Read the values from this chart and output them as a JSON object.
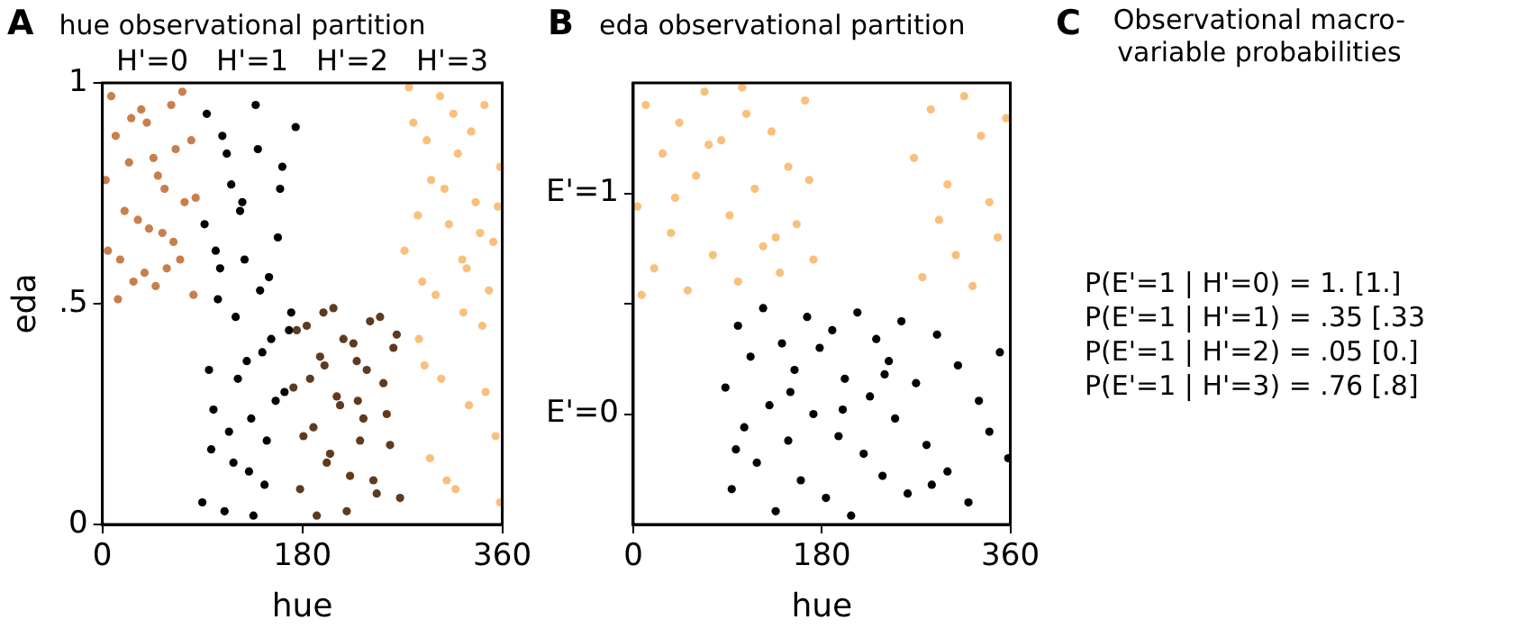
{
  "chart_data": [
    {
      "type": "scatter",
      "title": "hue observational partition",
      "annotations": [
        "A",
        "H'=0",
        "H'=1",
        "H'=2",
        "H'=3"
      ],
      "xlabel": "hue",
      "ylabel": "eda",
      "xlim": [
        0,
        360
      ],
      "xticks": [
        0,
        180,
        360
      ],
      "ylim": [
        0,
        1
      ],
      "yticks": [
        0,
        {
          "value": 0.5,
          "label": ".5"
        },
        1
      ],
      "grid": false,
      "legend": false,
      "marker": "circle",
      "series": [
        {
          "color": "#c87f4e",
          "x": [
            5,
            12,
            20,
            28,
            35,
            42,
            50,
            58,
            66,
            74,
            82,
            8,
            16,
            24,
            32,
            40,
            48,
            56,
            64,
            72,
            80,
            3,
            14,
            26,
            38,
            46,
            54,
            62,
            70,
            84
          ],
          "values": [
            0.62,
            0.88,
            0.71,
            0.55,
            0.94,
            0.67,
            0.79,
            0.58,
            0.85,
            0.73,
            0.52,
            0.97,
            0.6,
            0.82,
            0.69,
            0.91,
            0.54,
            0.76,
            0.64,
            0.98,
            0.87,
            0.78,
            0.51,
            0.92,
            0.57,
            0.83,
            0.66,
            0.95,
            0.6,
            0.74
          ]
        },
        {
          "color": "#000000",
          "x": [
            90,
            96,
            102,
            108,
            114,
            120,
            126,
            132,
            138,
            144,
            150,
            156,
            162,
            168,
            174,
            92,
            98,
            104,
            110,
            116,
            122,
            128,
            134,
            140,
            146,
            152,
            158,
            164,
            170,
            94,
            100,
            106,
            112,
            118,
            124,
            130,
            136,
            142,
            148,
            160
          ],
          "values": [
            0.05,
            0.35,
            0.62,
            0.88,
            0.21,
            0.47,
            0.73,
            0.12,
            0.95,
            0.39,
            0.56,
            0.28,
            0.81,
            0.44,
            0.9,
            0.68,
            0.17,
            0.51,
            0.03,
            0.77,
            0.33,
            0.6,
            0.24,
            0.85,
            0.09,
            0.42,
            0.65,
            0.3,
            0.48,
            0.93,
            0.26,
            0.58,
            0.84,
            0.14,
            0.71,
            0.37,
            0.02,
            0.53,
            0.19,
            0.76
          ]
        },
        {
          "color": "#603a1f",
          "x": [
            172,
            178,
            184,
            190,
            196,
            202,
            208,
            214,
            220,
            226,
            232,
            238,
            244,
            250,
            256,
            262,
            268,
            175,
            181,
            187,
            193,
            199,
            205,
            211,
            217,
            223,
            229,
            235,
            241,
            247,
            253,
            259,
            265,
            200,
            230
          ],
          "values": [
            0.31,
            0.08,
            0.45,
            0.22,
            0.38,
            0.14,
            0.49,
            0.27,
            0.03,
            0.41,
            0.19,
            0.35,
            0.1,
            0.47,
            0.25,
            0.4,
            0.06,
            0.44,
            0.2,
            0.33,
            0.02,
            0.48,
            0.16,
            0.29,
            0.42,
            0.11,
            0.37,
            0.24,
            0.46,
            0.07,
            0.32,
            0.18,
            0.43,
            0.36,
            0.28
          ]
        },
        {
          "color": "#f8c07c",
          "x": [
            272,
            280,
            288,
            296,
            304,
            312,
            320,
            328,
            336,
            344,
            352,
            358,
            276,
            284,
            292,
            300,
            308,
            316,
            324,
            332,
            340,
            348,
            356,
            285,
            295,
            305,
            318,
            330,
            342,
            354,
            290,
            310,
            325,
            345,
            358
          ],
          "values": [
            0.62,
            0.91,
            0.55,
            0.78,
            0.97,
            0.68,
            0.84,
            0.58,
            0.73,
            0.95,
            0.64,
            0.81,
            0.99,
            0.7,
            0.87,
            0.52,
            0.76,
            0.93,
            0.6,
            0.89,
            0.66,
            0.53,
            0.72,
            0.42,
            0.15,
            0.33,
            0.08,
            0.27,
            0.45,
            0.2,
            0.36,
            0.1,
            0.48,
            0.3,
            0.05
          ]
        }
      ]
    },
    {
      "type": "scatter",
      "title": "eda observational partition",
      "annotations": [
        "B"
      ],
      "xlabel": "hue",
      "xlim": [
        0,
        360
      ],
      "xticks": [
        0,
        180,
        360
      ],
      "ylim": [
        0,
        1
      ],
      "yticks": [
        {
          "value": 0.25,
          "label": "E'=0"
        },
        {
          "value": 0.5,
          "label": null
        },
        {
          "value": 0.75,
          "label": "E'=1"
        }
      ],
      "grid": false,
      "legend": false,
      "marker": "circle",
      "series": [
        {
          "color": "#f8c07c",
          "x": [
            4,
            12,
            20,
            28,
            36,
            44,
            52,
            60,
            68,
            76,
            84,
            92,
            100,
            108,
            116,
            124,
            132,
            140,
            148,
            156,
            164,
            172,
            8,
            40,
            72,
            104,
            136,
            168,
            268,
            276,
            284,
            292,
            300,
            308,
            316,
            324,
            332,
            340,
            348,
            356
          ],
          "values": [
            0.72,
            0.95,
            0.58,
            0.84,
            0.66,
            0.91,
            0.53,
            0.79,
            0.98,
            0.61,
            0.87,
            0.7,
            0.55,
            0.93,
            0.76,
            0.63,
            0.89,
            0.57,
            0.81,
            0.68,
            0.96,
            0.6,
            0.52,
            0.74,
            0.86,
            0.99,
            0.65,
            0.78,
            0.83,
            0.56,
            0.94,
            0.69,
            0.77,
            0.61,
            0.97,
            0.54,
            0.88,
            0.73,
            0.65,
            0.92
          ]
        },
        {
          "color": "#000000",
          "x": [
            88,
            94,
            100,
            106,
            112,
            118,
            124,
            130,
            136,
            142,
            148,
            154,
            160,
            166,
            172,
            178,
            184,
            190,
            196,
            202,
            208,
            214,
            220,
            226,
            232,
            238,
            244,
            250,
            256,
            262,
            270,
            280,
            290,
            300,
            310,
            320,
            330,
            340,
            350,
            358,
            98,
            150,
            200,
            240,
            285
          ],
          "values": [
            0.31,
            0.08,
            0.45,
            0.22,
            0.38,
            0.14,
            0.49,
            0.27,
            0.03,
            0.41,
            0.19,
            0.35,
            0.1,
            0.47,
            0.25,
            0.4,
            0.06,
            0.44,
            0.2,
            0.33,
            0.02,
            0.48,
            0.16,
            0.29,
            0.42,
            0.11,
            0.37,
            0.24,
            0.46,
            0.07,
            0.32,
            0.18,
            0.43,
            0.12,
            0.36,
            0.05,
            0.28,
            0.21,
            0.39,
            0.15,
            0.17,
            0.3,
            0.26,
            0.34,
            0.09
          ]
        }
      ]
    },
    {
      "type": "other",
      "title": "Observational macro-variable probabilities",
      "annotations": [
        "C",
        "P(E'=1 | H'=0) = 1. [1.]",
        "P(E'=1 | H'=1) = .35 [.33",
        "P(E'=1 | H'=2) = .05 [0.]",
        "P(E'=1 | H'=3) = .76 [.8]"
      ]
    }
  ]
}
